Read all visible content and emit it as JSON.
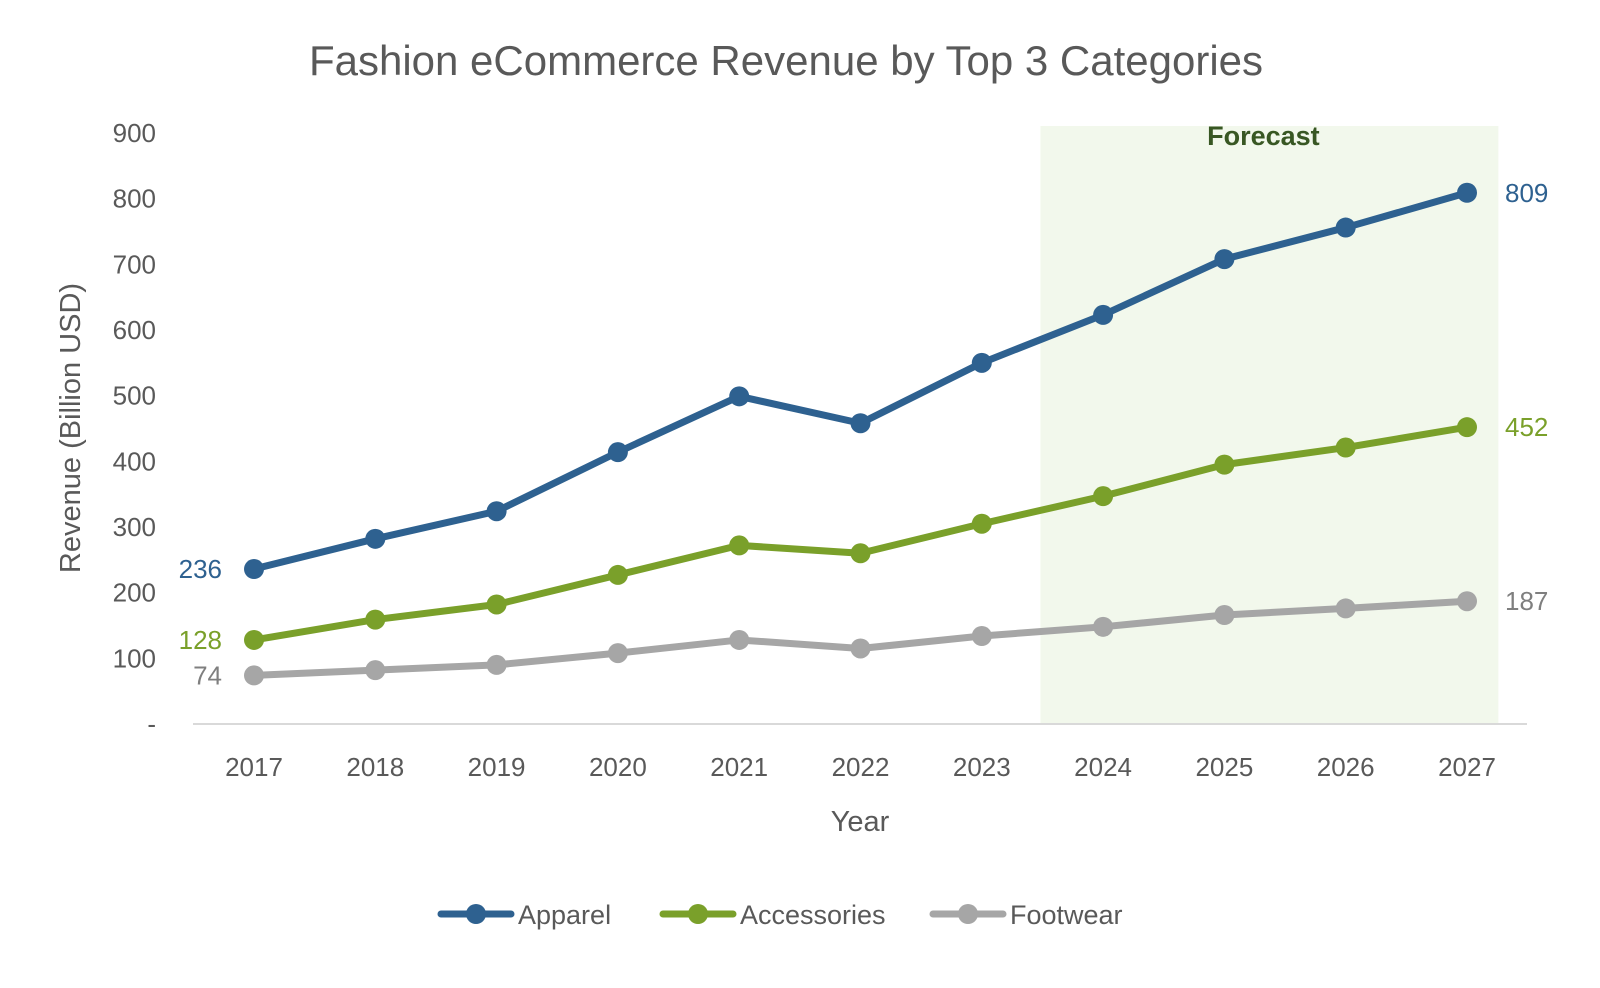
{
  "chart_data": {
    "type": "line",
    "title": "Fashion eCommerce Revenue by Top 3 Categories",
    "xlabel": "Year",
    "ylabel": "Revenue (Billion USD)",
    "ylim": [
      0,
      900
    ],
    "yticks": [
      0,
      100,
      200,
      300,
      400,
      500,
      600,
      700,
      800,
      900
    ],
    "ytick_labels": [
      "-",
      "100",
      "200",
      "300",
      "400",
      "500",
      "600",
      "700",
      "800",
      "900"
    ],
    "categories": [
      "2017",
      "2018",
      "2019",
      "2020",
      "2021",
      "2022",
      "2023",
      "2024",
      "2025",
      "2026",
      "2027"
    ],
    "grid": false,
    "legend_position": "bottom",
    "forecast_region": {
      "label": "Forecast",
      "from": "2024",
      "to": "2027",
      "color": "#f2f8ec",
      "label_color": "#385723"
    },
    "series": [
      {
        "name": "Apparel",
        "color": "#2e6190",
        "values": [
          236,
          282,
          324,
          414,
          499,
          458,
          550,
          623,
          708,
          756,
          809
        ],
        "first_label": "236",
        "last_label": "809"
      },
      {
        "name": "Accessories",
        "color": "#7aa02a",
        "values": [
          128,
          159,
          182,
          227,
          272,
          260,
          305,
          347,
          395,
          421,
          452
        ],
        "first_label": "128",
        "last_label": "452"
      },
      {
        "name": "Footwear",
        "color": "#a6a6a6",
        "label_color": "#7f7f7f",
        "values": [
          74,
          82,
          90,
          108,
          128,
          115,
          134,
          148,
          166,
          176,
          187
        ],
        "first_label": "74",
        "last_label": "187"
      }
    ]
  }
}
